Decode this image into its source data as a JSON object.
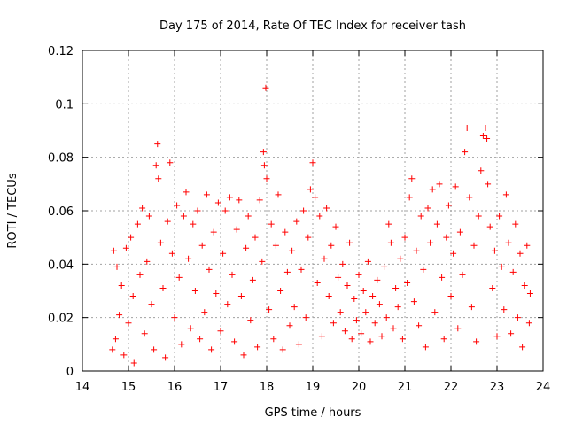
{
  "chart_data": {
    "type": "scatter",
    "title": "Day 175 of 2014, Rate Of TEC Index for receiver tash",
    "xlabel": "GPS time / hours",
    "ylabel": "ROTI / TECUs",
    "xlim": [
      14,
      24
    ],
    "ylim": [
      0,
      0.12
    ],
    "x_ticks": [
      14,
      15,
      16,
      17,
      18,
      19,
      20,
      21,
      22,
      23,
      24
    ],
    "x_tick_labels": [
      "14",
      "15",
      "16",
      "17",
      "18",
      "19",
      "20",
      "21",
      "22",
      "23",
      "24"
    ],
    "y_ticks": [
      0,
      0.02,
      0.04,
      0.06,
      0.08,
      0.1,
      0.12
    ],
    "y_tick_labels": [
      "0",
      "0.02",
      "0.04",
      "0.06",
      "0.08",
      "0.1",
      "0.12"
    ],
    "grid": true,
    "marker": "plus",
    "marker_color": "#ff0000",
    "series": [
      {
        "name": "ROTI",
        "points": [
          [
            14.65,
            0.008
          ],
          [
            14.68,
            0.045
          ],
          [
            14.72,
            0.012
          ],
          [
            14.75,
            0.039
          ],
          [
            14.8,
            0.021
          ],
          [
            14.85,
            0.032
          ],
          [
            14.9,
            0.006
          ],
          [
            14.95,
            0.046
          ],
          [
            15.0,
            0.018
          ],
          [
            15.05,
            0.05
          ],
          [
            15.1,
            0.028
          ],
          [
            15.12,
            0.003
          ],
          [
            15.2,
            0.055
          ],
          [
            15.25,
            0.036
          ],
          [
            15.3,
            0.061
          ],
          [
            15.35,
            0.014
          ],
          [
            15.4,
            0.041
          ],
          [
            15.45,
            0.058
          ],
          [
            15.5,
            0.025
          ],
          [
            15.55,
            0.008
          ],
          [
            15.6,
            0.077
          ],
          [
            15.63,
            0.085
          ],
          [
            15.65,
            0.072
          ],
          [
            15.7,
            0.048
          ],
          [
            15.75,
            0.031
          ],
          [
            15.8,
            0.005
          ],
          [
            15.85,
            0.056
          ],
          [
            15.9,
            0.078
          ],
          [
            15.95,
            0.044
          ],
          [
            16.0,
            0.02
          ],
          [
            16.05,
            0.062
          ],
          [
            16.1,
            0.035
          ],
          [
            16.15,
            0.01
          ],
          [
            16.2,
            0.058
          ],
          [
            16.25,
            0.067
          ],
          [
            16.3,
            0.042
          ],
          [
            16.35,
            0.016
          ],
          [
            16.4,
            0.055
          ],
          [
            16.45,
            0.03
          ],
          [
            16.5,
            0.06
          ],
          [
            16.55,
            0.012
          ],
          [
            16.6,
            0.047
          ],
          [
            16.65,
            0.022
          ],
          [
            16.7,
            0.066
          ],
          [
            16.75,
            0.038
          ],
          [
            16.8,
            0.008
          ],
          [
            16.85,
            0.052
          ],
          [
            16.9,
            0.029
          ],
          [
            16.95,
            0.063
          ],
          [
            17.0,
            0.015
          ],
          [
            17.05,
            0.044
          ],
          [
            17.1,
            0.06
          ],
          [
            17.15,
            0.025
          ],
          [
            17.2,
            0.065
          ],
          [
            17.25,
            0.036
          ],
          [
            17.3,
            0.011
          ],
          [
            17.35,
            0.053
          ],
          [
            17.4,
            0.064
          ],
          [
            17.45,
            0.028
          ],
          [
            17.5,
            0.006
          ],
          [
            17.55,
            0.046
          ],
          [
            17.6,
            0.058
          ],
          [
            17.65,
            0.019
          ],
          [
            17.7,
            0.034
          ],
          [
            17.75,
            0.05
          ],
          [
            17.8,
            0.009
          ],
          [
            17.85,
            0.064
          ],
          [
            17.9,
            0.041
          ],
          [
            17.93,
            0.082
          ],
          [
            17.95,
            0.077
          ],
          [
            17.98,
            0.106
          ],
          [
            18.0,
            0.072
          ],
          [
            18.05,
            0.023
          ],
          [
            18.1,
            0.055
          ],
          [
            18.15,
            0.012
          ],
          [
            18.2,
            0.047
          ],
          [
            18.25,
            0.066
          ],
          [
            18.3,
            0.03
          ],
          [
            18.35,
            0.008
          ],
          [
            18.4,
            0.052
          ],
          [
            18.45,
            0.037
          ],
          [
            18.5,
            0.017
          ],
          [
            18.55,
            0.045
          ],
          [
            18.6,
            0.024
          ],
          [
            18.65,
            0.056
          ],
          [
            18.7,
            0.01
          ],
          [
            18.75,
            0.038
          ],
          [
            18.8,
            0.06
          ],
          [
            18.85,
            0.02
          ],
          [
            18.9,
            0.05
          ],
          [
            18.95,
            0.068
          ],
          [
            19.0,
            0.078
          ],
          [
            19.05,
            0.065
          ],
          [
            19.1,
            0.033
          ],
          [
            19.15,
            0.058
          ],
          [
            19.2,
            0.013
          ],
          [
            19.25,
            0.042
          ],
          [
            19.3,
            0.061
          ],
          [
            19.35,
            0.028
          ],
          [
            19.4,
            0.047
          ],
          [
            19.45,
            0.018
          ],
          [
            19.5,
            0.054
          ],
          [
            19.55,
            0.035
          ],
          [
            19.6,
            0.022
          ],
          [
            19.65,
            0.04
          ],
          [
            19.7,
            0.015
          ],
          [
            19.75,
            0.032
          ],
          [
            19.8,
            0.048
          ],
          [
            19.85,
            0.012
          ],
          [
            19.9,
            0.027
          ],
          [
            19.95,
            0.019
          ],
          [
            20.0,
            0.036
          ],
          [
            20.05,
            0.014
          ],
          [
            20.1,
            0.03
          ],
          [
            20.15,
            0.022
          ],
          [
            20.2,
            0.041
          ],
          [
            20.25,
            0.011
          ],
          [
            20.3,
            0.028
          ],
          [
            20.35,
            0.018
          ],
          [
            20.4,
            0.034
          ],
          [
            20.45,
            0.025
          ],
          [
            20.5,
            0.013
          ],
          [
            20.55,
            0.039
          ],
          [
            20.6,
            0.02
          ],
          [
            20.65,
            0.055
          ],
          [
            20.7,
            0.048
          ],
          [
            20.75,
            0.016
          ],
          [
            20.8,
            0.031
          ],
          [
            20.85,
            0.024
          ],
          [
            20.9,
            0.042
          ],
          [
            20.95,
            0.012
          ],
          [
            21.0,
            0.05
          ],
          [
            21.05,
            0.033
          ],
          [
            21.1,
            0.065
          ],
          [
            21.15,
            0.072
          ],
          [
            21.2,
            0.026
          ],
          [
            21.25,
            0.045
          ],
          [
            21.3,
            0.017
          ],
          [
            21.35,
            0.058
          ],
          [
            21.4,
            0.038
          ],
          [
            21.45,
            0.009
          ],
          [
            21.5,
            0.061
          ],
          [
            21.55,
            0.048
          ],
          [
            21.6,
            0.068
          ],
          [
            21.65,
            0.022
          ],
          [
            21.7,
            0.055
          ],
          [
            21.75,
            0.07
          ],
          [
            21.8,
            0.035
          ],
          [
            21.85,
            0.012
          ],
          [
            21.9,
            0.05
          ],
          [
            21.95,
            0.062
          ],
          [
            22.0,
            0.028
          ],
          [
            22.05,
            0.044
          ],
          [
            22.1,
            0.069
          ],
          [
            22.15,
            0.016
          ],
          [
            22.2,
            0.052
          ],
          [
            22.25,
            0.036
          ],
          [
            22.3,
            0.082
          ],
          [
            22.35,
            0.091
          ],
          [
            22.4,
            0.065
          ],
          [
            22.45,
            0.024
          ],
          [
            22.5,
            0.047
          ],
          [
            22.55,
            0.011
          ],
          [
            22.6,
            0.058
          ],
          [
            22.65,
            0.075
          ],
          [
            22.7,
            0.088
          ],
          [
            22.75,
            0.091
          ],
          [
            22.78,
            0.087
          ],
          [
            22.8,
            0.07
          ],
          [
            22.85,
            0.054
          ],
          [
            22.9,
            0.031
          ],
          [
            22.95,
            0.045
          ],
          [
            23.0,
            0.013
          ],
          [
            23.05,
            0.058
          ],
          [
            23.1,
            0.039
          ],
          [
            23.15,
            0.023
          ],
          [
            23.2,
            0.066
          ],
          [
            23.25,
            0.048
          ],
          [
            23.3,
            0.014
          ],
          [
            23.35,
            0.037
          ],
          [
            23.4,
            0.055
          ],
          [
            23.45,
            0.02
          ],
          [
            23.5,
            0.044
          ],
          [
            23.55,
            0.009
          ],
          [
            23.6,
            0.032
          ],
          [
            23.65,
            0.047
          ],
          [
            23.7,
            0.018
          ],
          [
            23.72,
            0.029
          ]
        ]
      }
    ]
  }
}
